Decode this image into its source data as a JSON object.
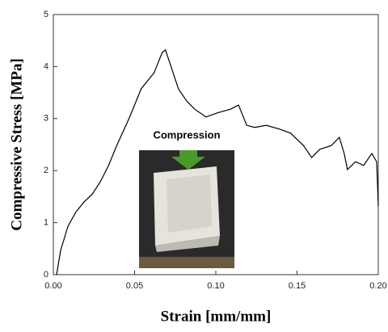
{
  "chart_data": {
    "type": "line",
    "xlabel": "Strain [mm/mm]",
    "ylabel": "Compressive Stress [MPa]",
    "annotation": "Compression",
    "x": [
      0.002,
      0.0045,
      0.009,
      0.014,
      0.019,
      0.024,
      0.029,
      0.034,
      0.039,
      0.047,
      0.054,
      0.062,
      0.067,
      0.069,
      0.072,
      0.077,
      0.082,
      0.087,
      0.094,
      0.101,
      0.109,
      0.114,
      0.119,
      0.124,
      0.131,
      0.139,
      0.146,
      0.154,
      0.159,
      0.164,
      0.171,
      0.176,
      0.179,
      0.181,
      0.186,
      0.191,
      0.196,
      0.199,
      0.2
    ],
    "values": [
      0,
      0.47,
      0.93,
      1.21,
      1.4,
      1.55,
      1.79,
      2.1,
      2.48,
      3.03,
      3.57,
      3.88,
      4.27,
      4.32,
      4.04,
      3.57,
      3.34,
      3.18,
      3.03,
      3.11,
      3.18,
      3.26,
      2.87,
      2.83,
      2.87,
      2.8,
      2.72,
      2.48,
      2.25,
      2.41,
      2.48,
      2.64,
      2.33,
      2.02,
      2.17,
      2.1,
      2.33,
      2.17,
      1.32
    ],
    "color": "#000000",
    "xlim": [
      0,
      0.2
    ],
    "ylim": [
      0,
      5
    ],
    "xticks": [
      {
        "value": 0,
        "label": "0.00"
      },
      0.05,
      {
        "value": 0.1,
        "label": "0.10"
      },
      0.15,
      {
        "value": 0.2,
        "label": "0.20"
      }
    ],
    "yticks": [
      0,
      1,
      2,
      3,
      4,
      5
    ]
  }
}
